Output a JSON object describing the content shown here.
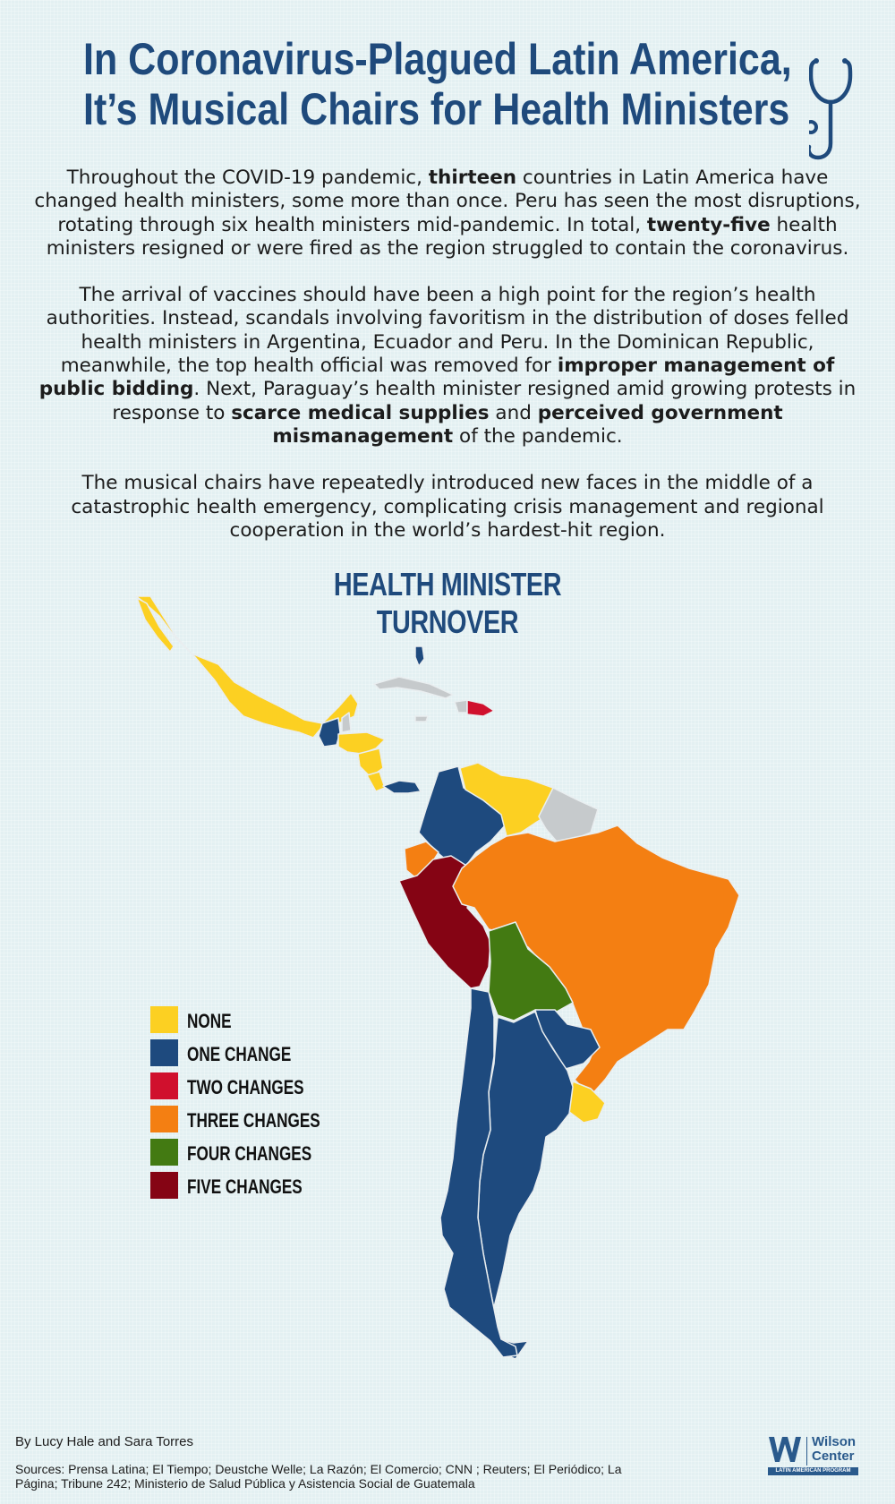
{
  "header": {
    "title_line1": "In Coronavirus-Plagued Latin America,",
    "title_line2": "It’s Musical Chairs for Health Ministers",
    "icon": "stethoscope-icon"
  },
  "intro": {
    "p1": {
      "t1": "Throughout the COVID-19 pandemic, ",
      "b1": "thirteen",
      "t2": " countries in Latin America have changed health ministers, some more than once. Peru has seen the most disruptions, rotating through six health ministers mid-pandemic. In total, ",
      "b2": "twenty-five",
      "t3": " health ministers resigned or were fired as the region struggled to contain the coronavirus."
    },
    "p2": {
      "t1": "The arrival of vaccines should have been a high point for the region’s health authorities. Instead, scandals involving favoritism in the distribution of doses felled health ministers in Argentina, Ecuador and Peru. In the Dominican Republic, meanwhile, the top health official was removed for ",
      "b1": "improper management of public bidding",
      "t2": ". Next, Paraguay’s health minister resigned amid growing protests in response to ",
      "b2": "scarce medical supplies",
      "t3": " and ",
      "b3": "perceived government mismanagement",
      "t4": " of the pandemic."
    },
    "p3": "The musical chairs have repeatedly introduced new faces in the middle of a catastrophic health emergency, complicating crisis management and regional cooperation in the world’s hardest-hit region."
  },
  "map": {
    "title": "HEALTH MINISTER TURNOVER",
    "colors": {
      "none": "#fcd022",
      "one": "#1e4a7e",
      "two": "#d0102d",
      "three": "#f47f12",
      "four": "#437a12",
      "five": "#850414",
      "no_data": "#c6cacc",
      "border": "#e9eef0"
    },
    "legend": [
      {
        "label": "NONE",
        "color": "#fcd022"
      },
      {
        "label": "ONE CHANGE",
        "color": "#1e4a7e"
      },
      {
        "label": "TWO CHANGES",
        "color": "#d0102d"
      },
      {
        "label": "THREE CHANGES",
        "color": "#f47f12"
      },
      {
        "label": "FOUR CHANGES",
        "color": "#437a12"
      },
      {
        "label": "FIVE CHANGES",
        "color": "#850414"
      }
    ]
  },
  "footer": {
    "byline": "By Lucy Hale and  Sara Torres",
    "sources": "Sources:  Prensa Latina; El Tiempo; Deustche Welle; La Razón; El Comercio; CNN ; Reuters; El Periódico; La Página; Tribune 242; Ministerio de Salud Pública y Asistencia Social de Guatemala",
    "logo": {
      "line1": "Wilson",
      "line2": "Center",
      "program": "LATIN AMERICAN PROGRAM",
      "icon": "wilson-center-logo-icon"
    }
  }
}
